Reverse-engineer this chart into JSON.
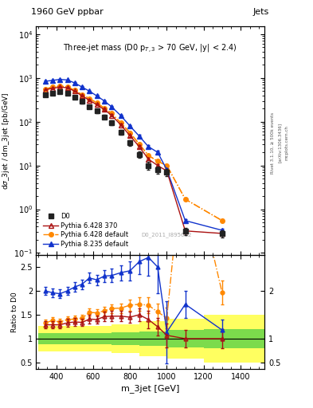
{
  "title_main": "1960 GeV ppbar",
  "title_right": "Jets",
  "subtitle": "Three-jet mass (D0 p$_{T,3}$ > 70 GeV, |y| < 2.4)",
  "xlabel": "m_3jet [GeV]",
  "ylabel_main": "dσ_3jet / dm_3jet [pb/GeV]",
  "ylabel_ratio": "Ratio to D0",
  "watermark": "D0_2011_I895662",
  "rivet_label": "Rivet 3.1.10, ≥ 500k events",
  "arxiv_label": "[arXiv:1306.3436]",
  "mcplots_label": "mcplots.cern.ch",
  "d0_x": [
    340,
    380,
    420,
    460,
    500,
    540,
    580,
    620,
    660,
    700,
    750,
    800,
    850,
    900,
    950,
    1000,
    1100,
    1300
  ],
  "d0_y": [
    420,
    450,
    480,
    450,
    370,
    290,
    220,
    175,
    130,
    95,
    58,
    33,
    18,
    10,
    8.0,
    7.0,
    0.32,
    0.28
  ],
  "d0_yerr": [
    35,
    35,
    35,
    35,
    30,
    25,
    22,
    18,
    15,
    12,
    8,
    5,
    3,
    2.0,
    1.5,
    1.2,
    0.06,
    0.05
  ],
  "p6_370_x": [
    340,
    380,
    420,
    460,
    500,
    540,
    580,
    620,
    660,
    700,
    750,
    800,
    850,
    900,
    950,
    1000,
    1100,
    1300
  ],
  "p6_370_y": [
    540,
    580,
    620,
    600,
    500,
    390,
    310,
    245,
    190,
    140,
    85,
    48,
    27,
    14,
    10.0,
    7.5,
    0.32,
    0.28
  ],
  "p6_370_yerr": [
    20,
    20,
    20,
    20,
    18,
    15,
    13,
    11,
    9,
    8,
    5,
    3,
    2,
    1.0,
    0.7,
    0.5,
    0.03,
    0.025
  ],
  "p6_def_x": [
    340,
    380,
    420,
    460,
    500,
    540,
    580,
    620,
    660,
    700,
    750,
    800,
    850,
    900,
    950,
    1000,
    1100,
    1300
  ],
  "p6_def_y": [
    560,
    620,
    650,
    630,
    520,
    415,
    340,
    270,
    205,
    155,
    95,
    56,
    31,
    17,
    12.5,
    10.0,
    1.7,
    0.55
  ],
  "p6_def_yerr": [
    18,
    18,
    18,
    18,
    15,
    13,
    11,
    9,
    8,
    6,
    5,
    3,
    1.8,
    1.0,
    0.8,
    0.6,
    0.09,
    0.04
  ],
  "p8_def_x": [
    340,
    380,
    420,
    460,
    500,
    540,
    580,
    620,
    660,
    700,
    750,
    800,
    850,
    900,
    950,
    1000,
    1100,
    1300
  ],
  "p8_def_y": [
    840,
    880,
    930,
    900,
    770,
    620,
    500,
    390,
    300,
    220,
    138,
    80,
    47,
    27,
    20,
    8.0,
    0.55,
    0.33
  ],
  "p8_def_yerr": [
    28,
    28,
    28,
    28,
    25,
    22,
    18,
    15,
    13,
    11,
    8,
    5,
    3,
    2.2,
    1.8,
    0.7,
    0.05,
    0.03
  ],
  "colors": {
    "d0": "#222222",
    "p6_370": "#aa1111",
    "p6_def": "#ff8800",
    "p8_def": "#1133cc"
  },
  "ratio_p6_370": [
    1.29,
    1.29,
    1.29,
    1.33,
    1.35,
    1.34,
    1.41,
    1.4,
    1.46,
    1.47,
    1.47,
    1.45,
    1.5,
    1.4,
    1.25,
    1.07,
    1.0,
    1.0
  ],
  "ratio_p6_370_err": [
    0.08,
    0.08,
    0.08,
    0.08,
    0.08,
    0.08,
    0.09,
    0.09,
    0.1,
    0.11,
    0.11,
    0.12,
    0.14,
    0.18,
    0.18,
    0.25,
    0.18,
    0.2
  ],
  "ratio_p6_def": [
    1.33,
    1.38,
    1.35,
    1.4,
    1.41,
    1.43,
    1.55,
    1.54,
    1.58,
    1.63,
    1.64,
    1.7,
    1.72,
    1.7,
    1.56,
    1.43,
    5.3,
    1.96
  ],
  "ratio_p6_def_err": [
    0.07,
    0.07,
    0.07,
    0.07,
    0.07,
    0.07,
    0.08,
    0.08,
    0.09,
    0.09,
    0.1,
    0.12,
    0.14,
    0.16,
    0.18,
    0.22,
    0.35,
    0.25
  ],
  "ratio_p8_def": [
    2.0,
    1.96,
    1.94,
    2.0,
    2.08,
    2.14,
    2.27,
    2.23,
    2.31,
    2.32,
    2.38,
    2.42,
    2.61,
    2.7,
    2.5,
    1.14,
    1.72,
    1.18
  ],
  "ratio_p8_def_err": [
    0.09,
    0.09,
    0.09,
    0.09,
    0.1,
    0.1,
    0.11,
    0.11,
    0.13,
    0.14,
    0.16,
    0.2,
    0.26,
    0.38,
    0.55,
    0.65,
    0.28,
    0.22
  ],
  "yb_x": [
    300,
    700,
    850,
    1000,
    1200,
    1550
  ],
  "yb_low": [
    0.73,
    0.7,
    0.63,
    0.58,
    0.5,
    0.42
  ],
  "yb_high": [
    1.27,
    1.3,
    1.37,
    1.42,
    1.5,
    1.58
  ],
  "gb_x": [
    300,
    700,
    850,
    1000,
    1200,
    1550
  ],
  "gb_low": [
    0.88,
    0.87,
    0.85,
    0.82,
    0.8,
    0.78
  ],
  "gb_high": [
    1.12,
    1.13,
    1.15,
    1.18,
    1.2,
    1.22
  ],
  "ylim_main": [
    0.09,
    15000
  ],
  "ylim_ratio": [
    0.36,
    2.75
  ],
  "xlim": [
    290,
    1530
  ]
}
